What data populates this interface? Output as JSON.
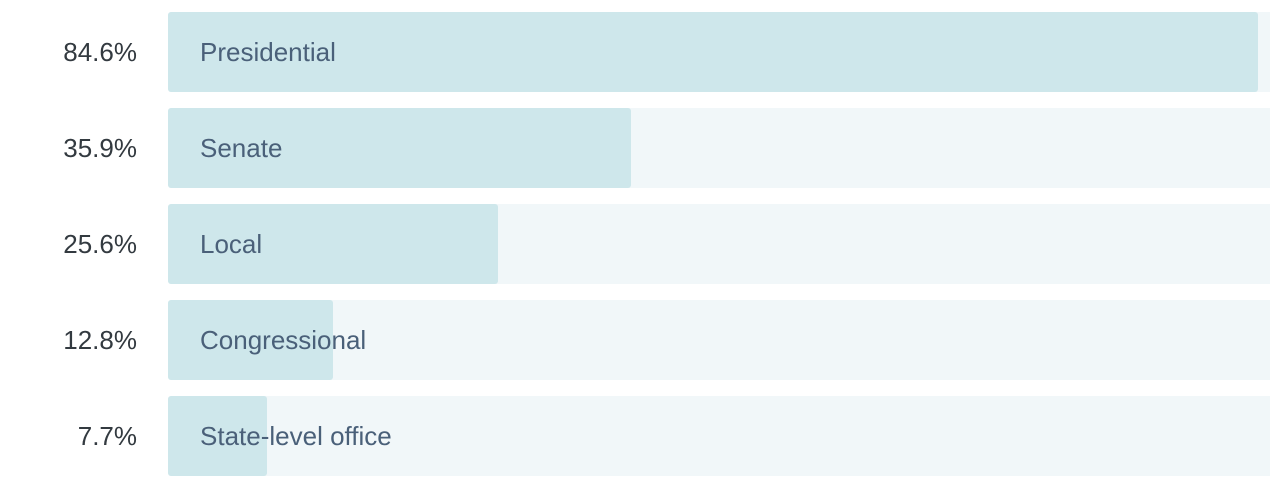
{
  "chart_data": {
    "type": "bar",
    "orientation": "horizontal",
    "categories": [
      "Presidential",
      "Senate",
      "Local",
      "Congressional",
      "State-level office"
    ],
    "values": [
      84.6,
      35.9,
      25.6,
      12.8,
      7.7
    ],
    "value_labels": [
      "84.6%",
      "35.9%",
      "25.6%",
      "12.8%",
      "7.7%"
    ],
    "unit": "%",
    "xlim": [
      0,
      85.5
    ],
    "grid": false,
    "legend": "none"
  },
  "colors": {
    "bar_fill": "#cee7eb",
    "track": "#f1f7f9",
    "label_text": "#4a6079",
    "value_text": "#333a40"
  }
}
